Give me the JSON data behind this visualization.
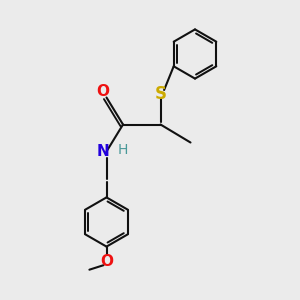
{
  "bg_color": "#ebebeb",
  "atom_colors": {
    "C": "#000000",
    "H": "#4a9999",
    "N": "#2200dd",
    "O": "#ee1111",
    "S": "#ccaa00"
  },
  "bond_color": "#111111",
  "bond_lw": 1.5,
  "font_size": 10,
  "figsize": [
    3.0,
    3.0
  ],
  "dpi": 100,
  "xlim": [
    -1,
    9
  ],
  "ylim": [
    -1,
    9
  ]
}
